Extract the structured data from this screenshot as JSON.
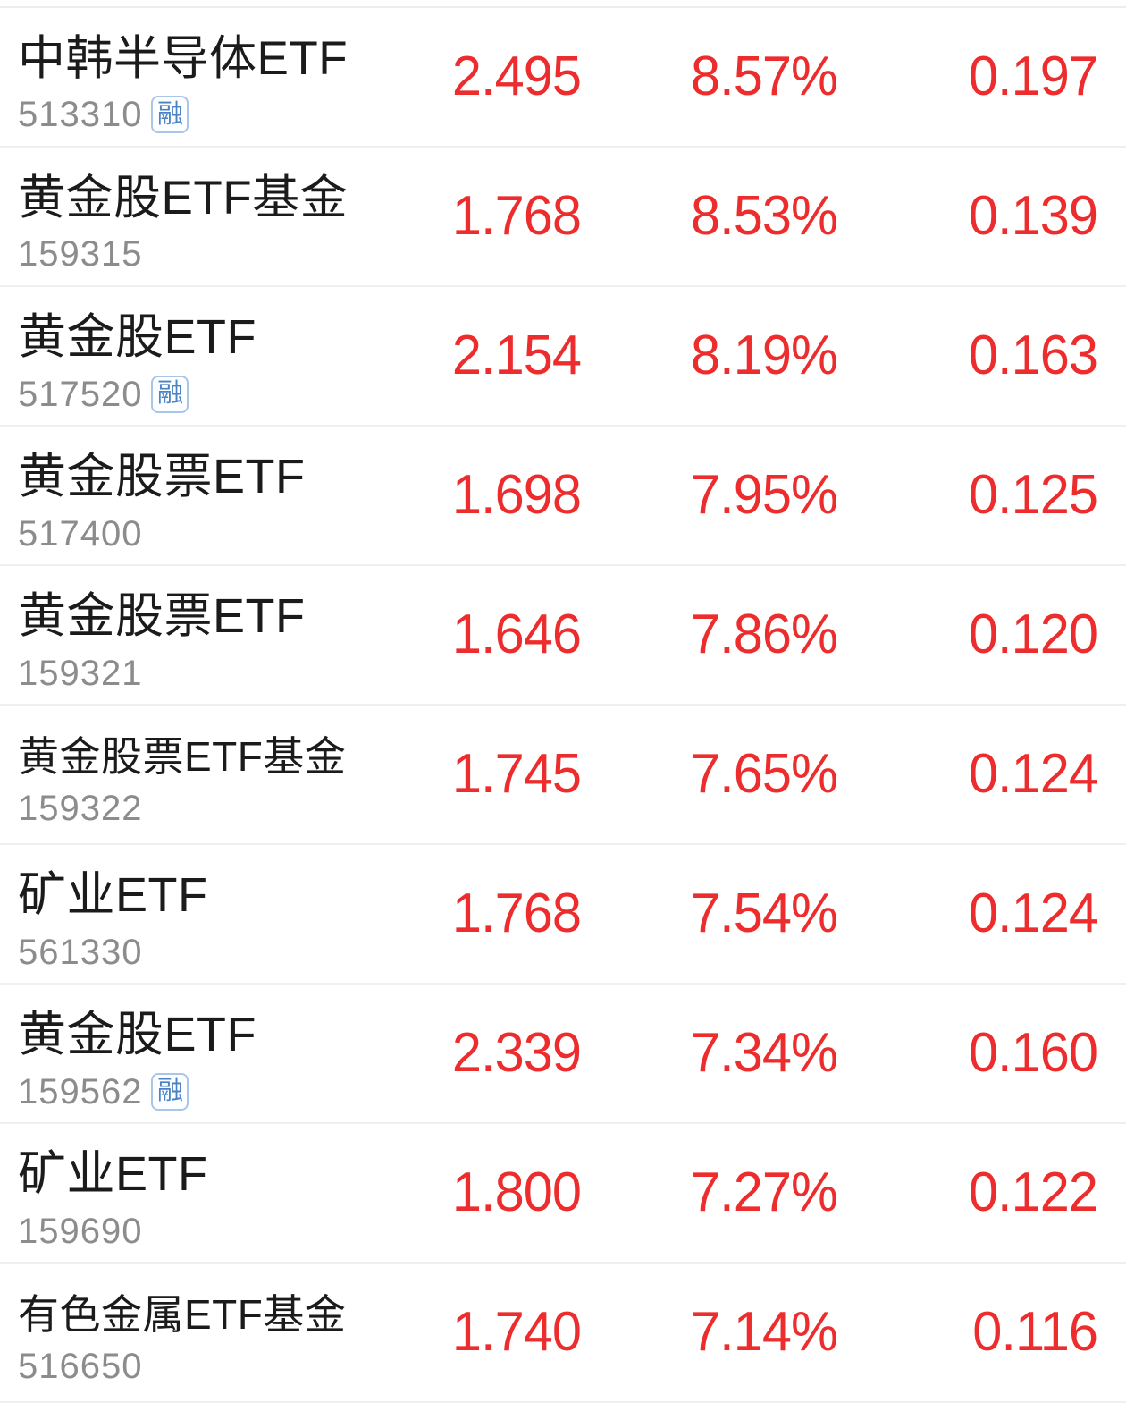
{
  "colors": {
    "up_red": "#ed2d2d",
    "name_text": "#1b1b1b",
    "code_text": "#8c8c8c",
    "divider": "#efefef",
    "badge_text_blue": "#4a82c4",
    "badge_border_blue": "#a9c6e9",
    "background": "#ffffff"
  },
  "badge": {
    "margin_label": "融"
  },
  "list": {
    "columns": [
      "name_and_code",
      "price",
      "change_percent",
      "change_value"
    ],
    "rows": [
      {
        "name": "中韩半导体ETF",
        "code": "513310",
        "margin": true,
        "price": "2.495",
        "change_percent": "8.57%",
        "change_value": "0.197"
      },
      {
        "name": "黄金股ETF基金",
        "code": "159315",
        "margin": false,
        "price": "1.768",
        "change_percent": "8.53%",
        "change_value": "0.139"
      },
      {
        "name": "黄金股ETF",
        "code": "517520",
        "margin": true,
        "price": "2.154",
        "change_percent": "8.19%",
        "change_value": "0.163"
      },
      {
        "name": "黄金股票ETF",
        "code": "517400",
        "margin": false,
        "price": "1.698",
        "change_percent": "7.95%",
        "change_value": "0.125"
      },
      {
        "name": "黄金股票ETF",
        "code": "159321",
        "margin": false,
        "price": "1.646",
        "change_percent": "7.86%",
        "change_value": "0.120"
      },
      {
        "name": "黄金股票ETF基金",
        "code": "159322",
        "margin": false,
        "price": "1.745",
        "change_percent": "7.65%",
        "change_value": "0.124"
      },
      {
        "name": "矿业ETF",
        "code": "561330",
        "margin": false,
        "price": "1.768",
        "change_percent": "7.54%",
        "change_value": "0.124"
      },
      {
        "name": "黄金股ETF",
        "code": "159562",
        "margin": true,
        "price": "2.339",
        "change_percent": "7.34%",
        "change_value": "0.160"
      },
      {
        "name": "矿业ETF",
        "code": "159690",
        "margin": false,
        "price": "1.800",
        "change_percent": "7.27%",
        "change_value": "0.122"
      },
      {
        "name": "有色金属ETF基金",
        "code": "516650",
        "margin": false,
        "price": "1.740",
        "change_percent": "7.14%",
        "change_value": "0.116"
      }
    ]
  }
}
